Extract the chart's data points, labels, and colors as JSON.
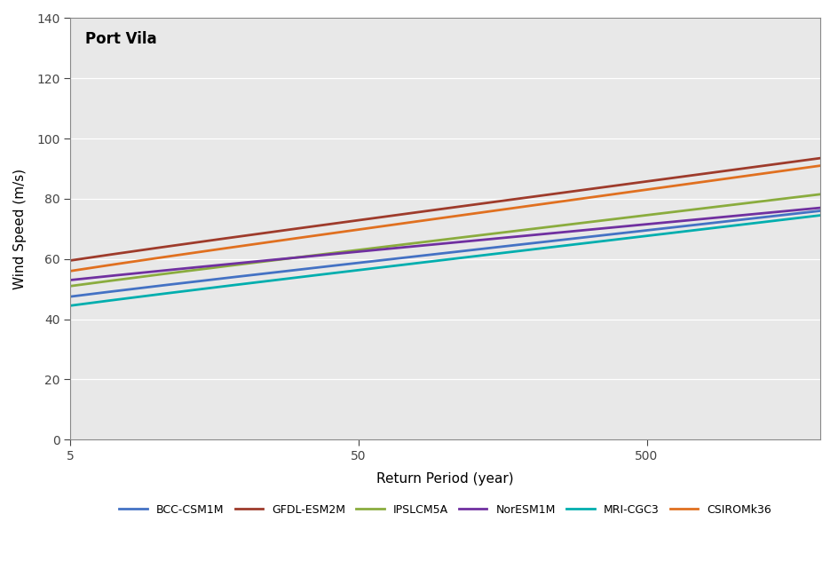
{
  "title": "Port Vila",
  "xlabel": "Return Period (year)",
  "ylabel": "Wind Speed (m/s)",
  "xlim": [
    5,
    2000
  ],
  "ylim": [
    0,
    140
  ],
  "yticks": [
    0,
    20,
    40,
    60,
    80,
    100,
    120,
    140
  ],
  "xticks": [
    5,
    50,
    500
  ],
  "xtick_labels": [
    "5",
    "50",
    "500"
  ],
  "bg_color": "#E8E8E8",
  "models": [
    {
      "name": "BCC-CSM1M",
      "color": "#4472C4",
      "v5": 47.5,
      "v50": 62.0,
      "v500": 72.5,
      "v2000": 76.0
    },
    {
      "name": "GFDL-ESM2M",
      "color": "#9E3B2B",
      "v5": 59.5,
      "v50": 77.0,
      "v500": 88.5,
      "v2000": 93.5
    },
    {
      "name": "IPSLCM5A",
      "color": "#8AAC3E",
      "v5": 51.0,
      "v50": 66.0,
      "v500": 77.0,
      "v2000": 81.5
    },
    {
      "name": "NorESM1M",
      "color": "#7030A0",
      "v5": 53.0,
      "v50": 65.5,
      "v500": 73.5,
      "v2000": 77.0
    },
    {
      "name": "MRI-CGC3",
      "color": "#00AEAE",
      "v5": 44.5,
      "v50": 58.5,
      "v500": 69.5,
      "v2000": 74.5
    },
    {
      "name": "CSIROMk36",
      "color": "#E07020",
      "v5": 56.0,
      "v50": 73.5,
      "v500": 85.5,
      "v2000": 91.0
    }
  ]
}
